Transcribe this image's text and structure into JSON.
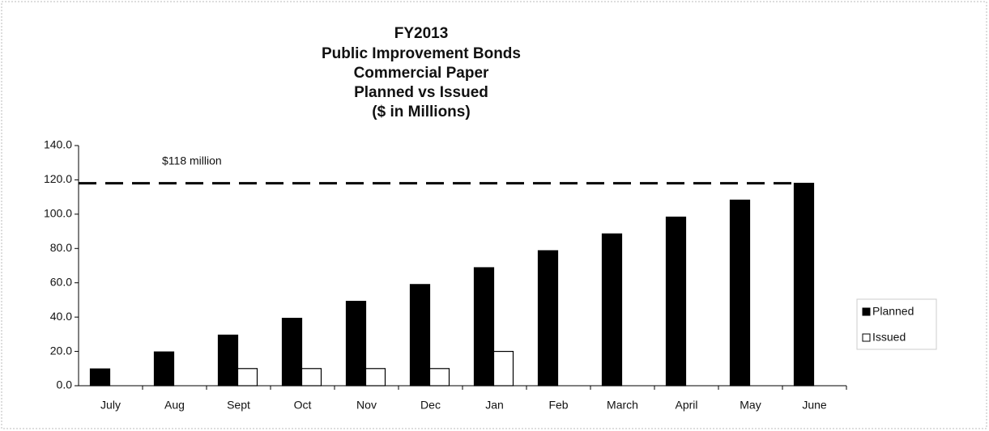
{
  "chart_data": {
    "type": "bar",
    "title": [
      "FY2013",
      "Public Improvement Bonds",
      "Commercial Paper",
      "Planned vs Issued",
      "($ in Millions)"
    ],
    "categories": [
      "July",
      "Aug",
      "Sept",
      "Oct",
      "Nov",
      "Dec",
      "Jan",
      "Feb",
      "March",
      "April",
      "May",
      "June"
    ],
    "series": [
      {
        "name": "Planned",
        "color": "#000000",
        "values": [
          9.8,
          19.7,
          29.5,
          39.3,
          49.2,
          59,
          68.8,
          78.7,
          88.5,
          98.3,
          108.2,
          118
        ]
      },
      {
        "name": "Issued",
        "color": "#ffffff",
        "values": [
          null,
          null,
          10,
          10,
          10,
          10,
          20,
          null,
          null,
          null,
          null,
          null
        ]
      }
    ],
    "ylim": [
      0,
      140
    ],
    "yticks": [
      {
        "value": 0,
        "label": "0.0"
      },
      {
        "value": 20,
        "label": "20.0"
      },
      {
        "value": 40,
        "label": "40.0"
      },
      {
        "value": 60,
        "label": "60.0"
      },
      {
        "value": 80,
        "label": "80.0"
      },
      {
        "value": 100,
        "label": "100.0"
      },
      {
        "value": 120,
        "label": "120.0"
      },
      {
        "value": 140,
        "label": "140.0"
      }
    ],
    "reference_line": {
      "value": 118,
      "label": "$118 million"
    },
    "grid": false,
    "legend": "right"
  }
}
